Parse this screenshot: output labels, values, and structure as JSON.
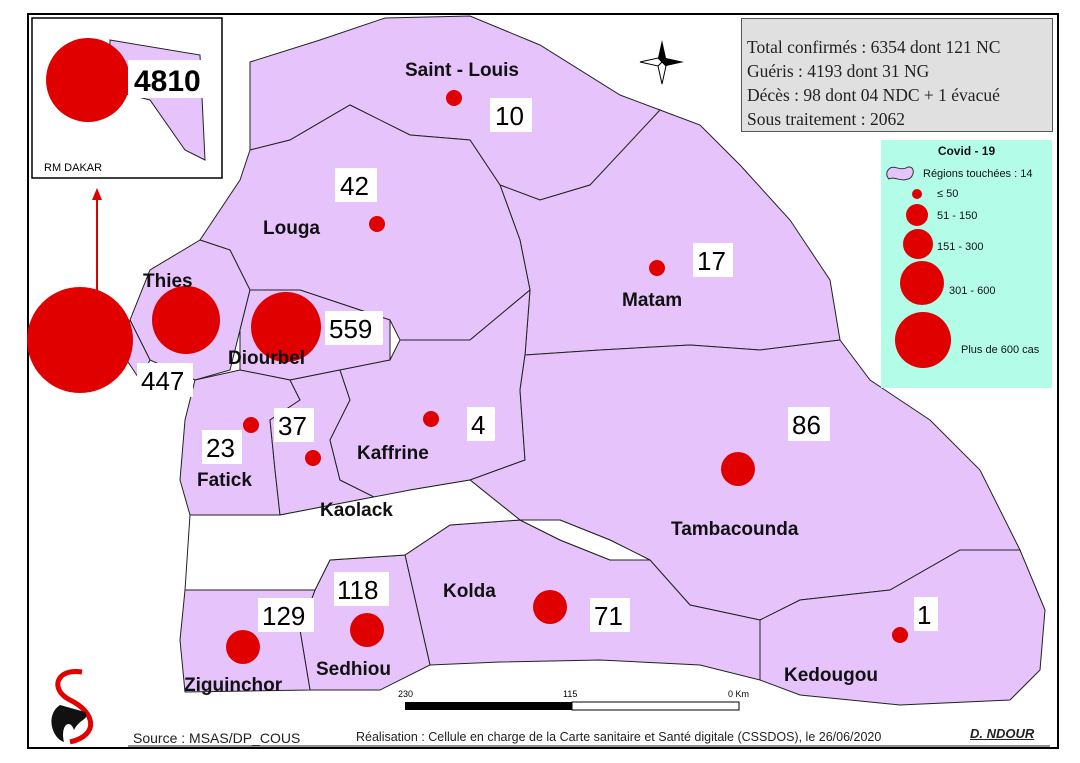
{
  "stats": {
    "lines": [
      "Total confirmés : 6354  dont 121 NC",
      "Guéris : 4193 dont 31 NG",
      "Décès : 98 dont 04 NDC + 1 évacué",
      "Sous traitement : 2062"
    ]
  },
  "legend": {
    "title": "Covid - 19",
    "regions_label": "Régions touchées : 14",
    "classes": [
      "≤ 50",
      "51 - 150",
      "151 - 300",
      "301 - 600",
      "Plus de 600 cas"
    ],
    "region_fill": "#e6c4fb",
    "circle_color": "#e00000",
    "background": "#b3fde8"
  },
  "inset": {
    "label": "RM DAKAR",
    "value": "4810"
  },
  "regions": [
    {
      "name": "Saint - Louis",
      "cases": "10"
    },
    {
      "name": "Louga",
      "cases": "42"
    },
    {
      "name": "Matam",
      "cases": "17"
    },
    {
      "name": "Thies",
      "cases": "447"
    },
    {
      "name": "Diourbel",
      "cases": "559"
    },
    {
      "name": "Fatick",
      "cases": "23"
    },
    {
      "name": "Kaolack",
      "cases": "37"
    },
    {
      "name": "Kaffrine",
      "cases": "4"
    },
    {
      "name": "Tambacounda",
      "cases": "86"
    },
    {
      "name": "Kolda",
      "cases": "71"
    },
    {
      "name": "Sedhiou",
      "cases": "118"
    },
    {
      "name": "Ziguinchor",
      "cases": "129"
    },
    {
      "name": "Kedougou",
      "cases": "1"
    }
  ],
  "scale": {
    "ticks": [
      "230",
      "115",
      "0 Km"
    ]
  },
  "footer": {
    "source": "Source : MSAS/DP_COUS",
    "credit": "Réalisation : Cellule en charge de la Carte sanitaire et Santé digitale (CSSDOS), le 26/06/2020",
    "author": "D. NDOUR"
  }
}
